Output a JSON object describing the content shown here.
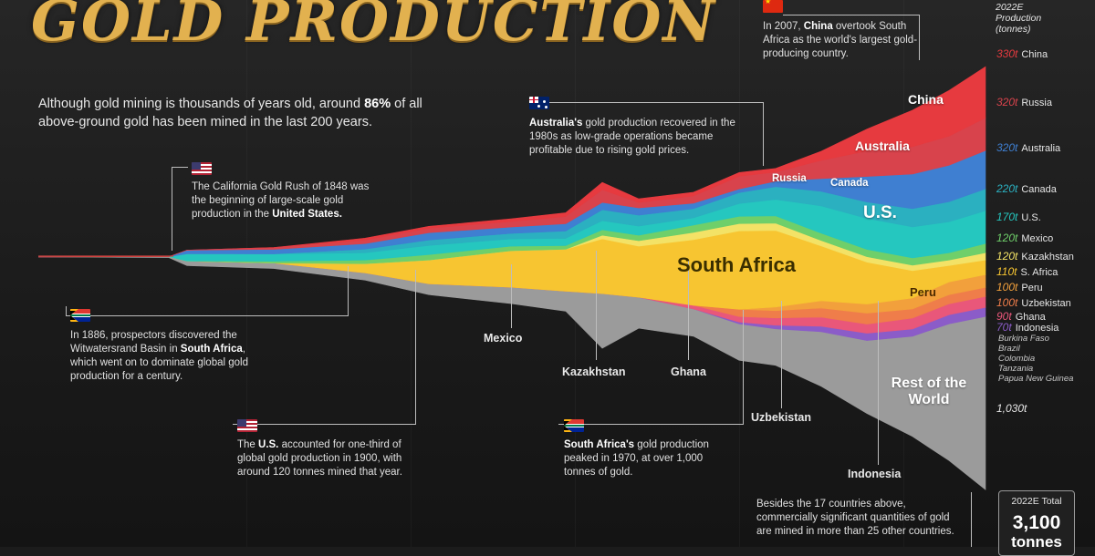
{
  "title": "GOLD PRODUCTION",
  "intro": {
    "before": "Although gold mining is thousands of years old, around ",
    "highlight": "86%",
    "after": " of all above-ground gold has been mined in the last 200 years."
  },
  "notes": {
    "gold_rush": {
      "text": "The California Gold Rush of 1848 was the beginning of large-scale gold production in the ",
      "bold": "United States."
    },
    "witwatersrand": {
      "before": "In 1886, prospectors discovered the Witwatersrand Basin in ",
      "bold": "South Africa",
      "after": ", which went on to dominate global gold production for a century."
    },
    "us_1900": {
      "before": "The ",
      "bold": "U.S.",
      "after": " accounted for one-third of global gold production in 1900, with around 120 tonnes mined that year."
    },
    "south_africa_peak": {
      "bold": "South Africa's",
      "after": " gold production peaked in 1970, at over 1,000 tonnes of gold."
    },
    "australia": {
      "bold": "Australia's",
      "after": " gold production recovered in the 1980s as low-grade operations became profitable due to rising gold prices."
    },
    "china": {
      "before": "In 2007, ",
      "bold": "China",
      "after": " overtook South Africa as the world's largest gold-producing country."
    },
    "others": "Besides the 17 countries above, commercially significant quantities of gold are mined in more than 25 other countries."
  },
  "chart_labels": {
    "china": "China",
    "australia": "Australia",
    "russia": "Russia",
    "canada": "Canada",
    "us": "U.S.",
    "south_africa": "South Africa",
    "peru": "Peru",
    "rest": "Rest of the World",
    "mexico": "Mexico",
    "kazakhstan": "Kazakhstan",
    "ghana": "Ghana",
    "uzbekistan": "Uzbekistan",
    "indonesia": "Indonesia"
  },
  "legend": {
    "header": "2022E Production (tonnes)",
    "rows": [
      {
        "value": "330t",
        "country": "China",
        "color": "#e63a3f"
      },
      {
        "value": "320t",
        "country": "Russia",
        "color": "#d8434c"
      },
      {
        "value": "320t",
        "country": "Australia",
        "color": "#3f7fd1"
      },
      {
        "value": "220t",
        "country": "Canada",
        "color": "#2bb0c0"
      },
      {
        "value": "170t",
        "country": "U.S.",
        "color": "#25c7bf"
      },
      {
        "value": "120t",
        "country": "Mexico",
        "color": "#6fcf6a"
      },
      {
        "value": "120t",
        "country": "Kazakhstan",
        "color": "#f3e266"
      },
      {
        "value": "110t",
        "country": "S. Africa",
        "color": "#f7c531"
      },
      {
        "value": "100t",
        "country": "Peru",
        "color": "#f2a03c"
      },
      {
        "value": "100t",
        "country": "Uzbekistan",
        "color": "#ef7d4a"
      },
      {
        "value": "90t",
        "country": "Ghana",
        "color": "#e9577a"
      },
      {
        "value": "70t",
        "country": "Indonesia",
        "color": "#8b5cc8"
      }
    ],
    "small_countries": [
      "Burkina Faso",
      "Brazil",
      "Colombia",
      "Tanzania",
      "Papua New Guinea"
    ],
    "rest_value": "1,030t",
    "total_label": "2022E Total",
    "total_value": "3,100",
    "total_unit": "tonnes"
  },
  "chart_data": {
    "type": "area",
    "subtype": "streamgraph",
    "x_range": [
      1800,
      2022
    ],
    "unit": "tonnes",
    "series": [
      {
        "name": "Rest of the World",
        "color": "#9b9b9b",
        "values_2022": 1030
      },
      {
        "name": "Indonesia",
        "color": "#8b5cc8",
        "values_2022": 70
      },
      {
        "name": "Ghana",
        "color": "#e9577a",
        "values_2022": 90
      },
      {
        "name": "Uzbekistan",
        "color": "#ef7d4a",
        "values_2022": 100
      },
      {
        "name": "Peru",
        "color": "#f2a03c",
        "values_2022": 100
      },
      {
        "name": "South Africa",
        "color": "#f7c531",
        "values_2022": 110
      },
      {
        "name": "Kazakhstan",
        "color": "#f3e266",
        "values_2022": 120
      },
      {
        "name": "Mexico",
        "color": "#6fcf6a",
        "values_2022": 120
      },
      {
        "name": "U.S.",
        "color": "#25c7bf",
        "values_2022": 170
      },
      {
        "name": "Canada",
        "color": "#2bb0c0",
        "values_2022": 220
      },
      {
        "name": "Australia",
        "color": "#3f7fd1",
        "values_2022": 320
      },
      {
        "name": "Russia",
        "color": "#d8434c",
        "values_2022": 320
      },
      {
        "name": "China",
        "color": "#e63a3f",
        "values_2022": 330
      }
    ],
    "annotations": [
      {
        "year": 1848,
        "text": "California Gold Rush"
      },
      {
        "year": 1886,
        "text": "Witwatersrand Basin discovered"
      },
      {
        "year": 1900,
        "text": "U.S. about 120 tonnes"
      },
      {
        "year": 1970,
        "text": "South Africa peak over 1,000 tonnes"
      },
      {
        "year": 2007,
        "text": "China overtook South Africa"
      }
    ]
  }
}
